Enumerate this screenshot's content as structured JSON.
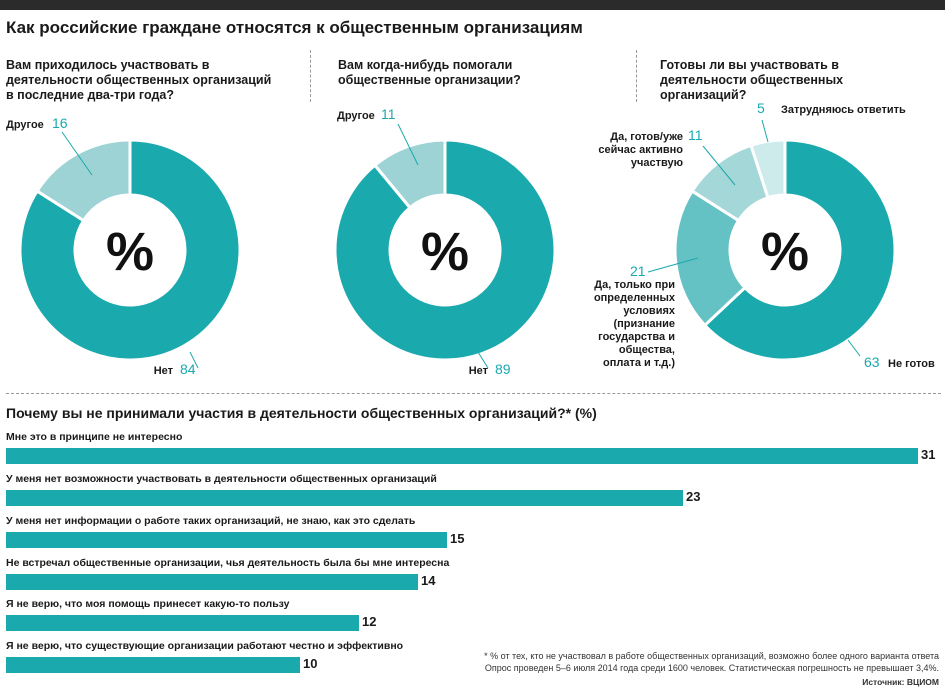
{
  "title": "Как российские граждане относятся к общественным организациям",
  "questions": [
    "Вам приходилось участвовать в деятельности общественных организаций в последние два-три года?",
    "Вам когда-нибудь помогали общественные организации?",
    "Готовы ли вы участвовать в деятельности общественных организаций?"
  ],
  "pct_symbol": "%",
  "chart_data": [
    {
      "type": "pie",
      "title": "Вам приходилось участвовать в деятельности общественных организаций в последние два-три года?",
      "unit": "%",
      "slices": [
        {
          "label": "Нет",
          "value": 84,
          "color": "#1aa9ad"
        },
        {
          "label": "Другое",
          "value": 16,
          "color": "#9dd3d4"
        }
      ]
    },
    {
      "type": "pie",
      "title": "Вам когда-нибудь помогали общественные организации?",
      "unit": "%",
      "slices": [
        {
          "label": "Нет",
          "value": 89,
          "color": "#1aa9ad"
        },
        {
          "label": "Другое",
          "value": 11,
          "color": "#9dd3d4"
        }
      ]
    },
    {
      "type": "pie",
      "title": "Готовы ли вы участвовать в деятельности общественных организаций?",
      "unit": "%",
      "slices": [
        {
          "label": "Не готов",
          "value": 63,
          "color": "#1aa9ad"
        },
        {
          "label": "Да, только при определенных условиях (признание государства и общества, оплата и т.д.)",
          "value": 21,
          "color": "#64c2c4"
        },
        {
          "label": "Да, готов/уже сейчас активно участвую",
          "value": 11,
          "color": "#a3d7d8"
        },
        {
          "label": "Затрудняюсь ответить",
          "value": 5,
          "color": "#cdebeb"
        }
      ]
    },
    {
      "type": "bar",
      "title": "Почему вы не принимали участия в деятельности общественных организаций?* (%)",
      "categories": [
        "Мне это в принципе не интересно",
        "У меня нет возможности участвовать в деятельности общественных организаций",
        "У меня нет информации о работе таких организаций, не знаю, как это сделать",
        "Не встречал общественные организации, чья деятельность была бы мне интересна",
        "Я не верю, что моя помощь принесет какую-то пользу",
        "Я не верю, что существующие организации работают честно и эффективно"
      ],
      "values": [
        31,
        23,
        15,
        14,
        12,
        10
      ],
      "color": "#1aa9ad"
    }
  ],
  "footnote_1": "* % от тех, кто не участвовал в работе общественных организаций, возможно более одного варианта ответа",
  "footnote_2": "Опрос проведен 5–6 июля 2014 года среди 1600 человек. Статистическая погрешность не превышает 3,4%.",
  "source_label": "Источник:",
  "source": "ВЦИОМ"
}
